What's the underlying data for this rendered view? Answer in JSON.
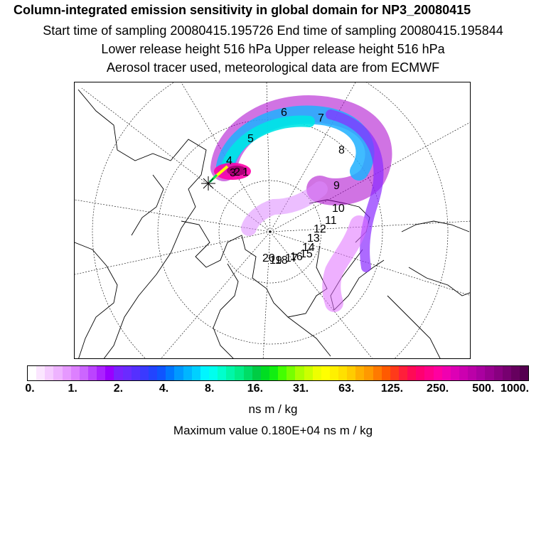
{
  "header": {
    "title": "Column-integrated emission sensitivity in global domain for NP3_20080415",
    "line2": "Start time of sampling 20080415.195726     End time of sampling 20080415.195844",
    "line3": "Lower release height  516 hPa        Upper release height  516 hPa",
    "line4": "Aerosol tracer used, meteorological data are from ECMWF"
  },
  "map": {
    "projection": "north polar stereographic",
    "trajectory_day_labels": [
      "1",
      "2",
      "3",
      "4",
      "5",
      "6",
      "7",
      "8",
      "9",
      "10",
      "11",
      "12",
      "13",
      "14",
      "15",
      "16",
      "17",
      "18",
      "19",
      "20"
    ]
  },
  "colorbar": {
    "tick_labels": [
      "0.",
      "1.",
      "2.",
      "4.",
      "8.",
      "16.",
      "31.",
      "63.",
      "125.",
      "250.",
      "500.",
      "1000."
    ],
    "colors": [
      "#ffffff",
      "#fbe6ff",
      "#f5ccff",
      "#eeb3ff",
      "#e699ff",
      "#dd80ff",
      "#cc66ff",
      "#bb44ff",
      "#aa22ff",
      "#9900ff",
      "#7a22ff",
      "#6a2bff",
      "#5530ff",
      "#3a3aff",
      "#2244ff",
      "#0f55ff",
      "#0077ff",
      "#0099ff",
      "#00b5ff",
      "#00d0ff",
      "#00f5ff",
      "#00ffee",
      "#00ffcc",
      "#00f7a8",
      "#00ee88",
      "#00dd66",
      "#00cc44",
      "#00dd22",
      "#11ee11",
      "#44ff00",
      "#77ff00",
      "#aaff00",
      "#ccff00",
      "#eeff00",
      "#ffff00",
      "#fff000",
      "#ffe000",
      "#ffcc00",
      "#ffb000",
      "#ff9900",
      "#ff7a00",
      "#ff5a00",
      "#ff3a1a",
      "#ff1f3a",
      "#ff0a55",
      "#ff0070",
      "#ff0088",
      "#ff00a0",
      "#f000b0",
      "#dd00b5",
      "#cc00b0",
      "#bb00a8",
      "#aa00a0",
      "#990090",
      "#880080",
      "#770070",
      "#66005e",
      "#550050"
    ],
    "unit_label": "ns m / kg",
    "max_value_text": "Maximum value  0.180E+04 ns m / kg"
  }
}
